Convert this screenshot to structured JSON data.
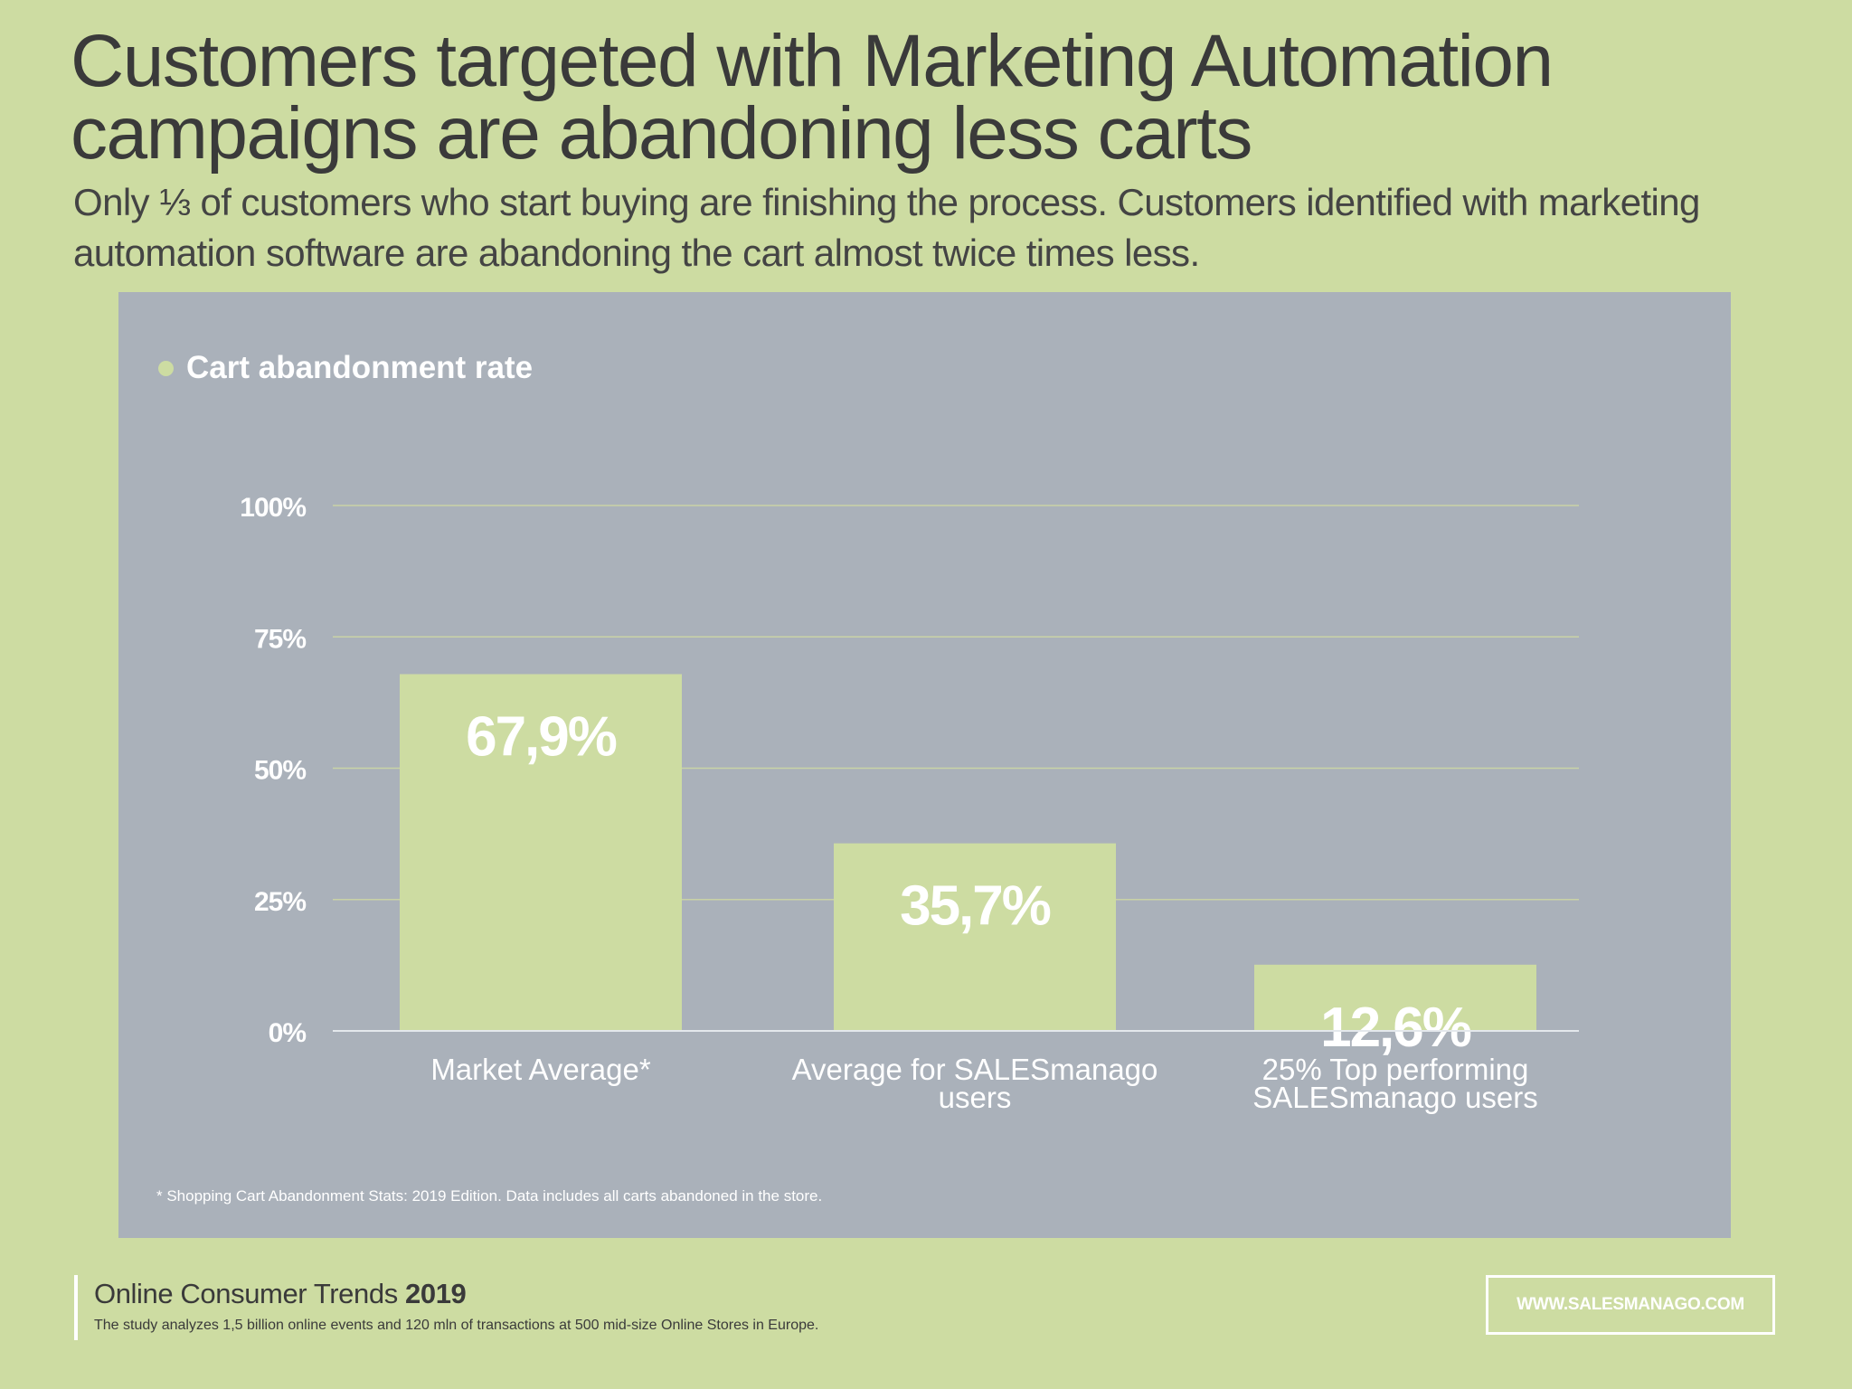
{
  "header": {
    "title": "Customers targeted with Marketing Automation campaigns are abandoning less carts",
    "subtitle": "Only ⅓ of customers who start buying are finishing the process. Customers identified with marketing automation software are abandoning the cart almost twice times less."
  },
  "chart_data": {
    "type": "bar",
    "categories": [
      [
        "Market Average*"
      ],
      [
        "Average for SALESmanago",
        "users"
      ],
      [
        "25% Top performing",
        "SALESmanago users"
      ]
    ],
    "series": [
      {
        "name": "Cart abandonment rate",
        "values": [
          67.9,
          35.7,
          12.6
        ]
      }
    ],
    "data_labels": [
      "67,9%",
      "35,7%",
      "12,6%"
    ],
    "y_ticks": [
      {
        "value": 0,
        "label": "0%"
      },
      {
        "value": 25,
        "label": "25%"
      },
      {
        "value": 50,
        "label": "50%"
      },
      {
        "value": 75,
        "label": "75%"
      },
      {
        "value": 100,
        "label": "100%"
      }
    ],
    "ylim": [
      0,
      100
    ],
    "grid": true,
    "legend_position": "top-left",
    "colors": {
      "bar": "#cddca2",
      "panel": "#aab1ba",
      "grid": "#c9d3a6",
      "text": "#ffffff"
    }
  },
  "footnote": "* Shopping Cart Abandonment Stats: 2019 Edition. Data includes all carts abandoned in the store.",
  "footer": {
    "title_prefix": "Online Consumer Trends ",
    "title_year": "2019",
    "description": "The study analyzes 1,5 billion online events and 120 mln of transactions at 500 mid-size Online Stores in Europe.",
    "url": "WWW.SALESMANAGO.COM"
  }
}
